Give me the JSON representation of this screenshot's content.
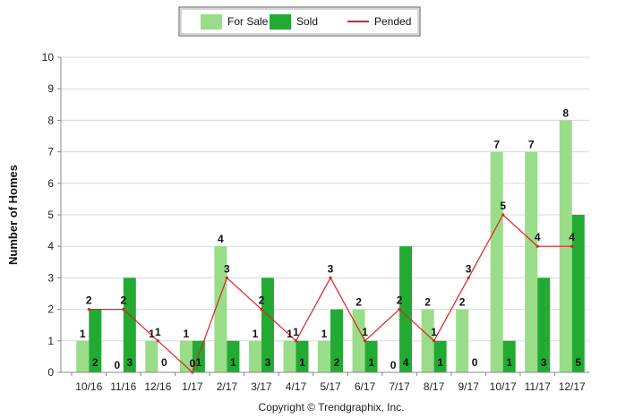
{
  "chart_data": {
    "type": "bar",
    "categories": [
      "10/16",
      "11/16",
      "12/16",
      "1/17",
      "2/17",
      "3/17",
      "4/17",
      "5/17",
      "6/17",
      "7/17",
      "8/17",
      "9/17",
      "10/17",
      "11/17",
      "12/17"
    ],
    "series": [
      {
        "name": "For Sale",
        "type": "bar",
        "color": "#99dd88",
        "values": [
          1,
          0,
          1,
          1,
          4,
          1,
          1,
          1,
          2,
          0,
          2,
          2,
          7,
          7,
          8
        ]
      },
      {
        "name": "Sold",
        "type": "bar",
        "color": "#22aa33",
        "values": [
          2,
          3,
          0,
          1,
          1,
          3,
          1,
          2,
          1,
          4,
          1,
          0,
          1,
          3,
          5
        ]
      },
      {
        "name": "Pended",
        "type": "line",
        "color": "#dd2222",
        "values": [
          2,
          2,
          1,
          0,
          3,
          2,
          1,
          3,
          1,
          2,
          1,
          3,
          5,
          4,
          4
        ]
      }
    ],
    "ylabel": "Number of Homes",
    "xlabel": "",
    "ylim": [
      0,
      10
    ],
    "yticks": [
      0,
      1,
      2,
      3,
      4,
      5,
      6,
      7,
      8,
      9,
      10
    ],
    "grid": "horizontal",
    "legend_position": "top-center"
  },
  "footer": {
    "copyright": "Copyright © Trendgraphix, Inc."
  }
}
